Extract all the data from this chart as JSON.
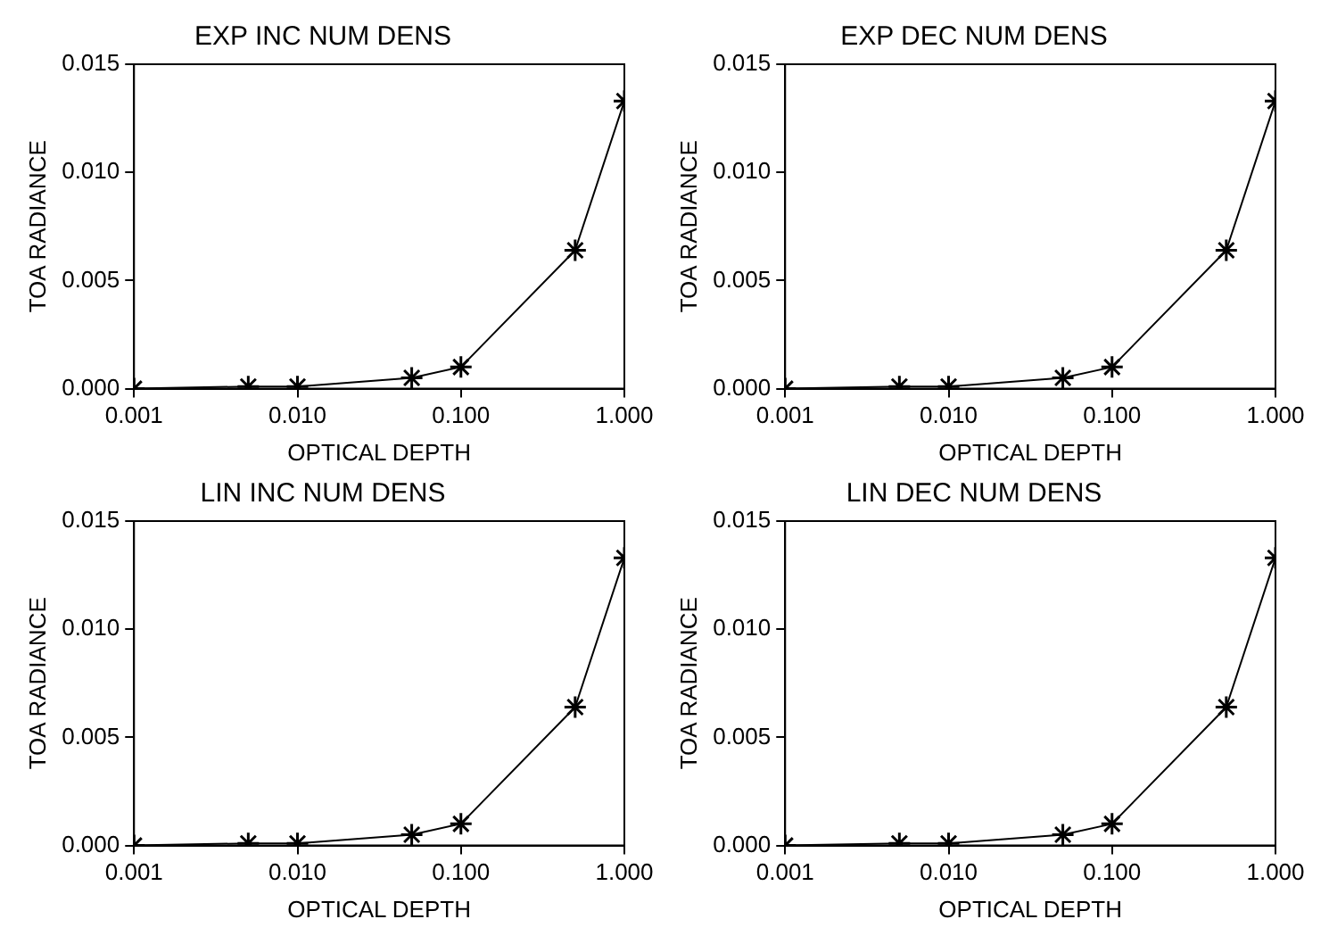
{
  "chart_data": [
    {
      "type": "line",
      "title": "EXP INC NUM DENS",
      "xlabel": "OPTICAL DEPTH",
      "ylabel": "TOA RADIANCE",
      "x": [
        0.001,
        0.005,
        0.01,
        0.05,
        0.1,
        0.5,
        1.0
      ],
      "values": [
        0.0,
        0.0001,
        0.0001,
        0.0005,
        0.001,
        0.0064,
        0.0133
      ],
      "color": "#000000",
      "marker": "cross",
      "line_style": "solid",
      "log": "x",
      "grid": false,
      "legend": false,
      "xlim": [
        0.001,
        1.0
      ],
      "xticks": [
        {
          "value": 0.001,
          "label": "0.001"
        },
        {
          "value": 0.01,
          "label": "0.010"
        },
        {
          "value": 0.1,
          "label": "0.100"
        },
        {
          "value": 1.0,
          "label": "1.000"
        }
      ],
      "ylim": [
        0,
        0.015
      ],
      "yticks": [
        {
          "value": 0,
          "label": "0.000"
        },
        {
          "value": 0.005,
          "label": "0.005"
        },
        {
          "value": 0.01,
          "label": "0.010"
        },
        {
          "value": 0.015,
          "label": "0.015"
        }
      ]
    },
    {
      "type": "line",
      "title": "EXP DEC NUM DENS",
      "xlabel": "OPTICAL DEPTH",
      "ylabel": "TOA RADIANCE",
      "x": [
        0.001,
        0.005,
        0.01,
        0.05,
        0.1,
        0.5,
        1.0
      ],
      "values": [
        0.0,
        0.0001,
        0.0001,
        0.0005,
        0.001,
        0.0064,
        0.0133
      ],
      "color": "#000000",
      "marker": "cross",
      "line_style": "solid",
      "log": "x",
      "grid": false,
      "legend": false,
      "xlim": [
        0.001,
        1.0
      ],
      "xticks": [
        {
          "value": 0.001,
          "label": "0.001"
        },
        {
          "value": 0.01,
          "label": "0.010"
        },
        {
          "value": 0.1,
          "label": "0.100"
        },
        {
          "value": 1.0,
          "label": "1.000"
        }
      ],
      "ylim": [
        0,
        0.015
      ],
      "yticks": [
        {
          "value": 0,
          "label": "0.000"
        },
        {
          "value": 0.005,
          "label": "0.005"
        },
        {
          "value": 0.01,
          "label": "0.010"
        },
        {
          "value": 0.015,
          "label": "0.015"
        }
      ]
    },
    {
      "type": "line",
      "title": "LIN INC NUM DENS",
      "xlabel": "OPTICAL DEPTH",
      "ylabel": "TOA RADIANCE",
      "x": [
        0.001,
        0.005,
        0.01,
        0.05,
        0.1,
        0.5,
        1.0
      ],
      "values": [
        0.0,
        0.0001,
        0.0001,
        0.0005,
        0.001,
        0.0064,
        0.0133
      ],
      "color": "#000000",
      "marker": "cross",
      "line_style": "solid",
      "log": "x",
      "grid": false,
      "legend": false,
      "xlim": [
        0.001,
        1.0
      ],
      "xticks": [
        {
          "value": 0.001,
          "label": "0.001"
        },
        {
          "value": 0.01,
          "label": "0.010"
        },
        {
          "value": 0.1,
          "label": "0.100"
        },
        {
          "value": 1.0,
          "label": "1.000"
        }
      ],
      "ylim": [
        0,
        0.015
      ],
      "yticks": [
        {
          "value": 0,
          "label": "0.000"
        },
        {
          "value": 0.005,
          "label": "0.005"
        },
        {
          "value": 0.01,
          "label": "0.010"
        },
        {
          "value": 0.015,
          "label": "0.015"
        }
      ]
    },
    {
      "type": "line",
      "title": "LIN DEC NUM DENS",
      "xlabel": "OPTICAL DEPTH",
      "ylabel": "TOA RADIANCE",
      "x": [
        0.001,
        0.005,
        0.01,
        0.05,
        0.1,
        0.5,
        1.0
      ],
      "values": [
        0.0,
        0.0001,
        0.0001,
        0.0005,
        0.001,
        0.0064,
        0.0133
      ],
      "color": "#000000",
      "marker": "cross",
      "line_style": "solid",
      "log": "x",
      "grid": false,
      "legend": false,
      "xlim": [
        0.001,
        1.0
      ],
      "xticks": [
        {
          "value": 0.001,
          "label": "0.001"
        },
        {
          "value": 0.01,
          "label": "0.010"
        },
        {
          "value": 0.1,
          "label": "0.100"
        },
        {
          "value": 1.0,
          "label": "1.000"
        }
      ],
      "ylim": [
        0,
        0.015
      ],
      "yticks": [
        {
          "value": 0,
          "label": "0.000"
        },
        {
          "value": 0.005,
          "label": "0.005"
        },
        {
          "value": 0.01,
          "label": "0.010"
        },
        {
          "value": 0.015,
          "label": "0.015"
        }
      ]
    }
  ]
}
